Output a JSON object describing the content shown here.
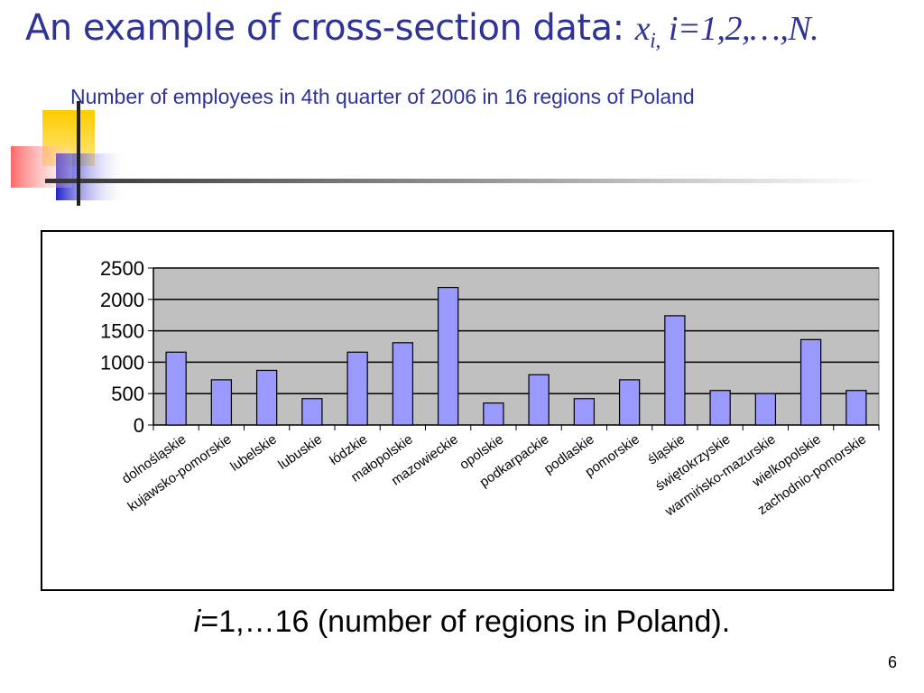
{
  "slide": {
    "title_text": "An example of cross-section data: ",
    "title_math_var": "x",
    "title_math_sub": "i,",
    "title_math_rest": " i=1,2,…,N.",
    "subtitle": "Number of employees in 4th quarter of  2006 in 16 regions of Poland",
    "footnote_var": "i",
    "footnote_rest": "=1,…16 (number of regions in Poland).",
    "page_number": "6"
  },
  "colors": {
    "title": "#2f3399",
    "bar_fill": "#9999ff",
    "plot_bg": "#c0c0c0"
  },
  "chart_data": {
    "type": "bar",
    "title": "",
    "xlabel": "",
    "ylabel": "",
    "ylim": [
      0,
      2500
    ],
    "yticks": [
      "0",
      "500",
      "1000",
      "1500",
      "2000",
      "2500"
    ],
    "ytick_values": [
      0,
      500,
      1000,
      1500,
      2000,
      2500
    ],
    "grid": true,
    "categories": [
      "dolnośląskie",
      "kujawsko-pomorskie",
      "lubelskie",
      "lubuskie",
      "łódzkie",
      "małopolskie",
      "mazowieckie",
      "opolskie",
      "podkarpackie",
      "podlaskie",
      "pomorskie",
      "śląskie",
      "świętokrzyskie",
      "warmińsko-mazurskie",
      "wielkopolskie",
      "zachodnio-pomorskie"
    ],
    "values": [
      1160,
      720,
      870,
      420,
      1160,
      1310,
      2190,
      350,
      800,
      420,
      720,
      1740,
      550,
      500,
      1360,
      550
    ]
  }
}
